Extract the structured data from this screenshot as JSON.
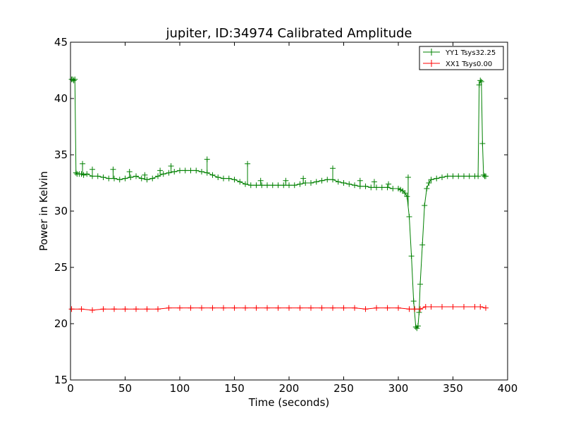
{
  "chart_data": {
    "type": "line",
    "title": "jupiter, ID:34974 Calibrated Amplitude",
    "xlabel": "Time (seconds)",
    "ylabel": "Power in Kelvin",
    "xlim": [
      0,
      400
    ],
    "ylim": [
      15,
      45
    ],
    "xticks": [
      0,
      50,
      100,
      150,
      200,
      250,
      300,
      350,
      400
    ],
    "yticks": [
      15,
      20,
      25,
      30,
      35,
      40,
      45
    ],
    "grid": false,
    "legend_position": "top-right",
    "marker": "+",
    "series": [
      {
        "name": "YY1 Tsys32.25",
        "color": "#008000",
        "x": [
          1,
          2,
          3,
          4,
          5,
          6,
          8,
          10,
          12,
          15,
          20,
          25,
          30,
          35,
          40,
          45,
          50,
          55,
          60,
          65,
          70,
          75,
          80,
          85,
          90,
          95,
          100,
          105,
          110,
          115,
          120,
          125,
          130,
          135,
          140,
          145,
          150,
          155,
          160,
          165,
          170,
          175,
          180,
          185,
          190,
          195,
          200,
          205,
          210,
          215,
          220,
          225,
          230,
          235,
          240,
          245,
          250,
          255,
          260,
          265,
          270,
          275,
          280,
          285,
          290,
          295,
          300,
          302,
          304,
          306,
          308,
          310,
          312,
          314,
          316,
          317,
          318,
          319,
          320,
          322,
          324,
          326,
          328,
          330,
          335,
          340,
          345,
          350,
          355,
          360,
          365,
          370,
          373,
          374,
          375,
          376,
          377,
          378,
          379,
          380
        ],
        "values": [
          41.7,
          41.7,
          41.6,
          41.7,
          33.4,
          33.3,
          33.3,
          33.3,
          33.2,
          33.3,
          33.1,
          33.1,
          33.0,
          32.9,
          32.9,
          32.8,
          32.9,
          33.0,
          33.1,
          32.9,
          32.8,
          32.9,
          33.1,
          33.3,
          33.4,
          33.5,
          33.6,
          33.6,
          33.6,
          33.6,
          33.5,
          33.4,
          33.2,
          33.0,
          32.9,
          32.9,
          32.8,
          32.6,
          32.4,
          32.3,
          32.3,
          32.3,
          32.3,
          32.3,
          32.3,
          32.3,
          32.3,
          32.3,
          32.4,
          32.5,
          32.5,
          32.6,
          32.7,
          32.8,
          32.8,
          32.6,
          32.5,
          32.4,
          32.3,
          32.2,
          32.2,
          32.1,
          32.1,
          32.1,
          32.1,
          32.0,
          32.0,
          31.9,
          31.8,
          31.6,
          31.3,
          29.5,
          26.0,
          22.0,
          19.7,
          19.6,
          19.8,
          21.0,
          23.5,
          27.0,
          30.5,
          32.0,
          32.5,
          32.8,
          32.9,
          33.0,
          33.1,
          33.1,
          33.1,
          33.1,
          33.1,
          33.1,
          33.1,
          41.2,
          41.6,
          41.5,
          36.0,
          33.2,
          33.1,
          33.1
        ],
        "spikes": [
          [
            11,
            34.2
          ],
          [
            20,
            33.7
          ],
          [
            39,
            33.7
          ],
          [
            54,
            33.5
          ],
          [
            68,
            33.2
          ],
          [
            82,
            33.6
          ],
          [
            92,
            34.0
          ],
          [
            125,
            34.6
          ],
          [
            162,
            34.2
          ],
          [
            174,
            32.7
          ],
          [
            197,
            32.7
          ],
          [
            213,
            32.9
          ],
          [
            240,
            33.8
          ],
          [
            265,
            32.7
          ],
          [
            278,
            32.6
          ],
          [
            291,
            32.4
          ],
          [
            309,
            33.0
          ]
        ]
      },
      {
        "name": "XX1 Tsys0.00",
        "color": "#ff0000",
        "x": [
          1,
          10,
          20,
          30,
          40,
          50,
          60,
          70,
          80,
          90,
          100,
          110,
          120,
          130,
          140,
          150,
          160,
          170,
          180,
          190,
          200,
          210,
          220,
          230,
          240,
          250,
          260,
          270,
          280,
          290,
          300,
          310,
          315,
          320,
          325,
          330,
          340,
          350,
          360,
          370,
          375,
          380
        ],
        "values": [
          21.3,
          21.3,
          21.2,
          21.3,
          21.3,
          21.3,
          21.3,
          21.3,
          21.3,
          21.4,
          21.4,
          21.4,
          21.4,
          21.4,
          21.4,
          21.4,
          21.4,
          21.4,
          21.4,
          21.4,
          21.4,
          21.4,
          21.4,
          21.4,
          21.4,
          21.4,
          21.4,
          21.3,
          21.4,
          21.4,
          21.4,
          21.3,
          21.3,
          21.3,
          21.5,
          21.5,
          21.5,
          21.5,
          21.5,
          21.5,
          21.5,
          21.4
        ]
      }
    ]
  }
}
